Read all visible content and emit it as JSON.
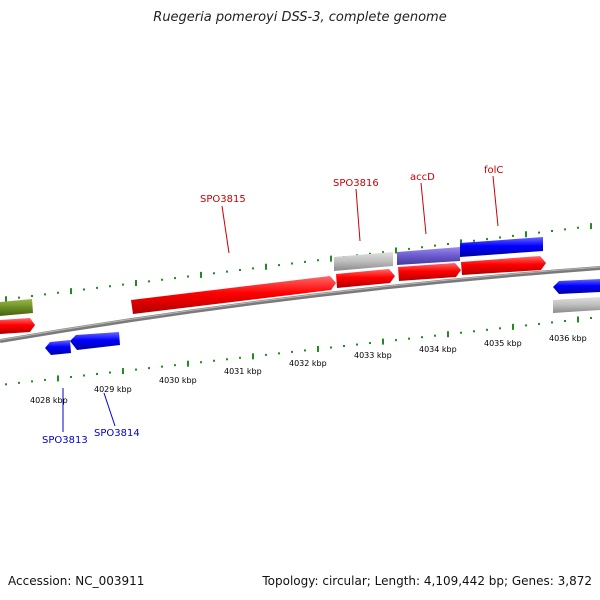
{
  "title": "Ruegeria pomeroyi DSS-3, complete genome",
  "footer": {
    "accession": "Accession: NC_003911",
    "stats": "Topology: circular; Length: 4,109,442 bp; Genes: 3,872"
  },
  "colors": {
    "forward_gene": "#ff0000",
    "reverse_gene": "#0000ff",
    "rna": "#6b8e23",
    "pseudo": "#b0b0b0",
    "overlap": "#6a5acd",
    "tick": "#228b22",
    "backbone": "#808080",
    "forward_label": "#cc0000",
    "reverse_label": "#0000cc"
  },
  "kbp_labels": [
    "4028 kbp",
    "4029 kbp",
    "4030 kbp",
    "4031 kbp",
    "4032 kbp",
    "4033 kbp",
    "4034 kbp",
    "4035 kbp",
    "4036 kbp"
  ],
  "gene_labels": [
    {
      "text": "SPO3815",
      "strand": "forward"
    },
    {
      "text": "SPO3816",
      "strand": "forward"
    },
    {
      "text": "accD",
      "strand": "forward"
    },
    {
      "text": "folC",
      "strand": "forward"
    },
    {
      "text": "SPO3813",
      "strand": "reverse"
    },
    {
      "text": "SPO3814",
      "strand": "reverse"
    }
  ]
}
